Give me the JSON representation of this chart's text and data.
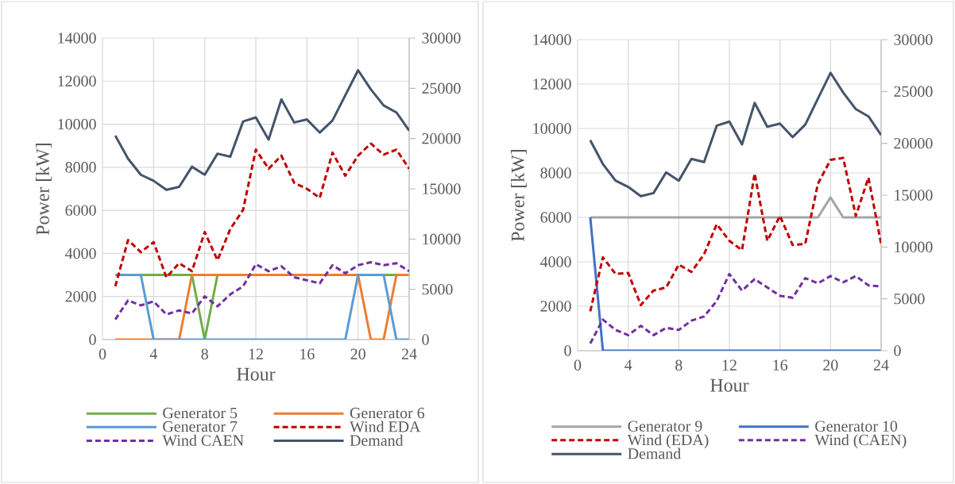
{
  "chart_data": [
    {
      "type": "line",
      "xlabel": "Hour",
      "ylabel": "Power [kW]",
      "x": [
        1,
        2,
        3,
        4,
        5,
        6,
        7,
        8,
        9,
        10,
        11,
        12,
        13,
        14,
        15,
        16,
        17,
        18,
        19,
        20,
        21,
        22,
        23,
        24
      ],
      "xlim": [
        0,
        24
      ],
      "xticks": [
        0,
        4,
        8,
        12,
        16,
        20,
        24
      ],
      "ylim": [
        0,
        14000
      ],
      "yticks": [
        0,
        2000,
        4000,
        6000,
        8000,
        10000,
        12000,
        14000
      ],
      "y2lim": [
        0,
        30000
      ],
      "y2ticks": [
        0,
        5000,
        10000,
        15000,
        20000,
        25000,
        30000
      ],
      "grid": true,
      "legend": "bottom",
      "series": [
        {
          "name": "Generator 5",
          "color": "#70ad47",
          "axis": "y",
          "line_style": "solid",
          "values": [
            null,
            null,
            3000,
            3000,
            3000,
            3000,
            3000,
            0,
            3000,
            null,
            null,
            null,
            null,
            null,
            null,
            null,
            null,
            null,
            null,
            null,
            null,
            3000,
            3000,
            null
          ]
        },
        {
          "name": "Generator 6",
          "color": "#ed7d31",
          "axis": "y",
          "line_style": "solid",
          "values": [
            0,
            0,
            0,
            0,
            0,
            0,
            3000,
            3000,
            3000,
            3000,
            3000,
            3000,
            3000,
            3000,
            3000,
            3000,
            3000,
            3000,
            3000,
            3000,
            0,
            0,
            3000,
            3000
          ]
        },
        {
          "name": "Generator 7",
          "color": "#5b9bd5",
          "axis": "y",
          "line_style": "solid",
          "values": [
            3000,
            3000,
            3000,
            0,
            0,
            0,
            0,
            0,
            0,
            0,
            0,
            0,
            0,
            0,
            0,
            0,
            0,
            0,
            0,
            3000,
            3000,
            3000,
            0,
            0
          ]
        },
        {
          "name": "Wind EDA",
          "color": "#c00000",
          "axis": "y2",
          "line_style": "dashed",
          "values": [
            5300,
            9900,
            8700,
            9700,
            6200,
            7600,
            6800,
            10700,
            7900,
            11000,
            12900,
            18900,
            17000,
            18300,
            15600,
            15000,
            14100,
            18600,
            16300,
            18300,
            19500,
            18400,
            18900,
            17000
          ]
        },
        {
          "name": "Wind CAEN",
          "color": "#7030a0",
          "axis": "y2",
          "line_style": "dashed",
          "values": [
            2000,
            3900,
            3400,
            3800,
            2500,
            2900,
            2600,
            4300,
            3300,
            4500,
            5300,
            7500,
            6800,
            7300,
            6200,
            5900,
            5600,
            7400,
            6600,
            7400,
            7700,
            7400,
            7600,
            6800
          ]
        },
        {
          "name": "Demand",
          "color": "#44546a",
          "axis": "y2",
          "line_style": "solid",
          "values": [
            20300,
            18000,
            16400,
            15800,
            14900,
            15200,
            17200,
            16400,
            18500,
            18200,
            21700,
            22100,
            19900,
            23900,
            21600,
            21900,
            20600,
            21800,
            24300,
            26800,
            24900,
            23300,
            22600,
            20800
          ]
        }
      ]
    },
    {
      "type": "line",
      "xlabel": "Hour",
      "ylabel": "Power [kW]",
      "x": [
        1,
        2,
        3,
        4,
        5,
        6,
        7,
        8,
        9,
        10,
        11,
        12,
        13,
        14,
        15,
        16,
        17,
        18,
        19,
        20,
        21,
        22,
        23,
        24
      ],
      "xlim": [
        0,
        24
      ],
      "xticks": [
        0,
        4,
        8,
        12,
        16,
        20,
        24
      ],
      "ylim": [
        0,
        14000
      ],
      "yticks": [
        0,
        2000,
        4000,
        6000,
        8000,
        10000,
        12000,
        14000
      ],
      "y2lim": [
        0,
        30000
      ],
      "y2ticks": [
        0,
        5000,
        10000,
        15000,
        20000,
        25000,
        30000
      ],
      "grid": true,
      "legend": "bottom",
      "series": [
        {
          "name": "Generator 9",
          "color": "#a5a5a5",
          "axis": "y",
          "line_style": "solid",
          "values": [
            6000,
            6000,
            6000,
            6000,
            6000,
            6000,
            6000,
            6000,
            6000,
            6000,
            6000,
            6000,
            6000,
            6000,
            6000,
            6000,
            6000,
            6000,
            6000,
            6900,
            6000,
            6000,
            6000,
            6000
          ]
        },
        {
          "name": "Generator 10",
          "color": "#4472c4",
          "axis": "y",
          "line_style": "solid",
          "values": [
            6000,
            0,
            0,
            0,
            0,
            0,
            0,
            0,
            0,
            0,
            0,
            0,
            0,
            0,
            0,
            0,
            0,
            0,
            0,
            0,
            0,
            0,
            0,
            0
          ]
        },
        {
          "name": "Wind (EDA)",
          "color": "#c00000",
          "axis": "y2",
          "line_style": "dashed",
          "values": [
            3800,
            9000,
            7400,
            7500,
            4400,
            5800,
            6100,
            8300,
            7600,
            9300,
            12200,
            10600,
            9700,
            17100,
            10600,
            13000,
            10200,
            10300,
            16100,
            18400,
            18600,
            13000,
            16700,
            10300
          ]
        },
        {
          "name": "Wind (CAEN)",
          "color": "#7030a0",
          "axis": "y2",
          "line_style": "dashed",
          "values": [
            700,
            3000,
            2000,
            1500,
            2400,
            1500,
            2200,
            2000,
            2900,
            3300,
            4800,
            7400,
            5800,
            6900,
            6100,
            5300,
            5100,
            7000,
            6500,
            7200,
            6600,
            7200,
            6300,
            6200
          ]
        },
        {
          "name": "Demand",
          "color": "#44546a",
          "axis": "y2",
          "line_style": "solid",
          "values": [
            20300,
            18000,
            16400,
            15800,
            14900,
            15200,
            17200,
            16400,
            18500,
            18200,
            21700,
            22100,
            19900,
            23900,
            21600,
            21900,
            20600,
            21800,
            24300,
            26800,
            24900,
            23300,
            22600,
            20800
          ]
        }
      ]
    }
  ]
}
